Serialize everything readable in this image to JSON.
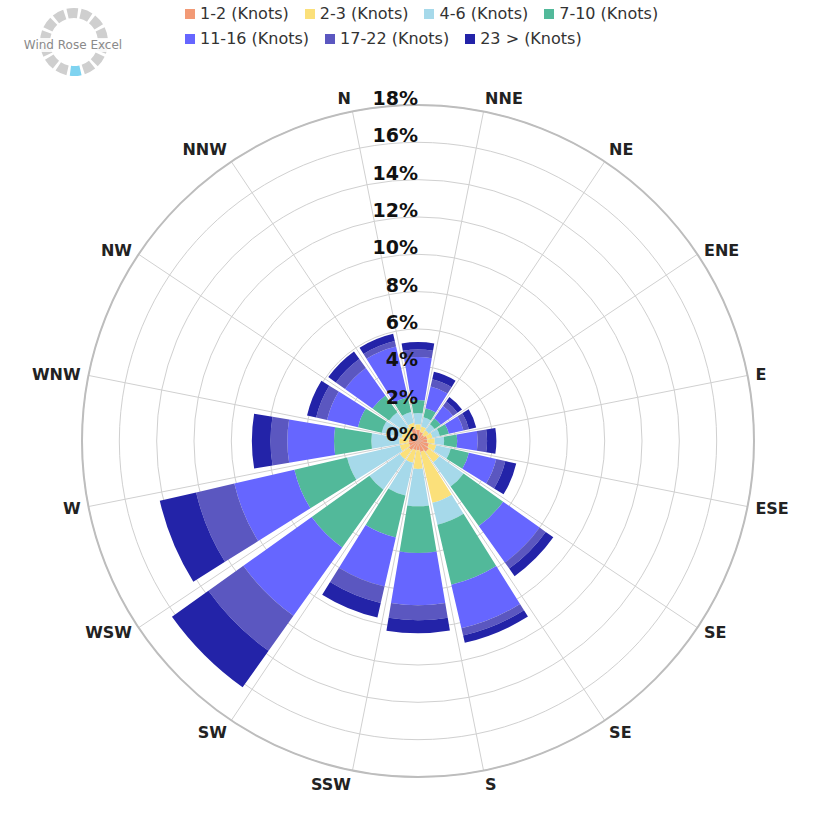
{
  "chart_data": {
    "type": "windrose",
    "annotations": [
      "Wind Rose Excel"
    ],
    "categories": [
      "N",
      "NNE",
      "NE",
      "ENE",
      "E",
      "ESE",
      "SE",
      "SE",
      "S",
      "SSW",
      "SW",
      "WSW",
      "W",
      "WNW",
      "NW",
      "NNW"
    ],
    "series": [
      {
        "name": "1-2 (Knots)",
        "color": "#f29a76",
        "values": [
          0.7,
          0.6,
          0.5,
          0.4,
          0.5,
          0.5,
          0.6,
          0.7,
          0.6,
          0.5,
          0.5,
          0.6,
          0.5,
          0.5,
          0.5,
          0.5
        ]
      },
      {
        "name": "2-3 (Knots)",
        "color": "#fbe07a",
        "values": [
          0.3,
          0.3,
          0.3,
          0.3,
          0.3,
          0.4,
          0.4,
          0.7,
          2.8,
          1.0,
          0.7,
          0.6,
          0.5,
          0.5,
          0.4,
          0.4
        ]
      },
      {
        "name": "4-6 (Knots)",
        "color": "#a6d9ea",
        "values": [
          0.6,
          0.6,
          0.5,
          0.4,
          0.4,
          0.5,
          0.8,
          1.6,
          1.2,
          2.0,
          1.8,
          2.0,
          2.9,
          1.5,
          1.1,
          1.0
        ]
      },
      {
        "name": "7-10 (Knots)",
        "color": "#52b99a",
        "values": [
          0.8,
          0.7,
          0.5,
          0.4,
          0.5,
          0.7,
          1.0,
          2.6,
          3.3,
          2.5,
          2.3,
          3.8,
          2.9,
          2.0,
          1.3,
          1.1
        ]
      },
      {
        "name": "11-16 (Knots)",
        "color": "#6666ff",
        "values": [
          2.8,
          2.3,
          1.2,
          0.8,
          0.8,
          1.1,
          1.5,
          2.4,
          2.4,
          2.8,
          2.7,
          4.5,
          3.3,
          2.5,
          1.7,
          1.8
        ]
      },
      {
        "name": "17-22 (Knots)",
        "color": "#5b57c0",
        "values": [
          0.3,
          0.4,
          0.4,
          0.3,
          0.3,
          0.5,
          0.5,
          0.4,
          0.4,
          0.8,
          0.9,
          2.3,
          2.1,
          0.9,
          0.6,
          0.6
        ]
      },
      {
        "name": "23 > (Knots)",
        "color": "#2323a8",
        "values": [
          0.4,
          0.4,
          0.4,
          0.3,
          0.4,
          0.5,
          0.6,
          0.5,
          0.4,
          0.7,
          0.8,
          2.4,
          2.0,
          1.0,
          0.5,
          0.5
        ]
      }
    ],
    "ylim": [
      0,
      18
    ],
    "yticks": [
      {
        "value": 0,
        "label": "0%"
      },
      {
        "value": 2,
        "label": "2%"
      },
      {
        "value": 4,
        "label": "4%"
      },
      {
        "value": 6,
        "label": "6%"
      },
      {
        "value": 8,
        "label": "8%"
      },
      {
        "value": 10,
        "label": "10%"
      },
      {
        "value": 12,
        "label": "12%"
      },
      {
        "value": 14,
        "label": "14%"
      },
      {
        "value": 16,
        "label": "16%"
      },
      {
        "value": 18,
        "label": "18%"
      }
    ],
    "grid": true,
    "stacked": true,
    "legend": "top"
  }
}
